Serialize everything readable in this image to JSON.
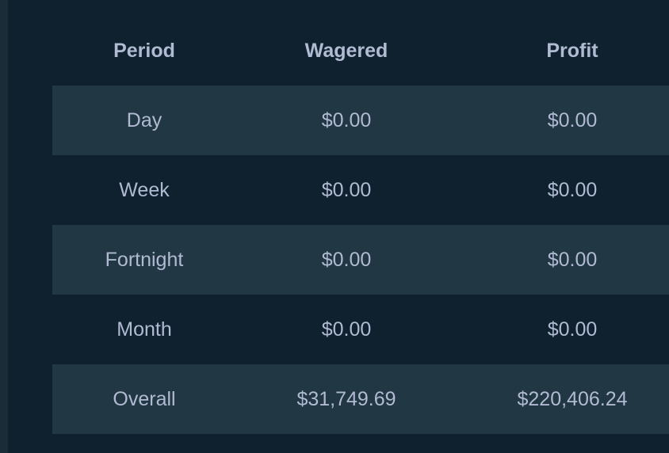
{
  "table": {
    "headers": [
      "Period",
      "Wagered",
      "Profit"
    ],
    "rows": [
      {
        "period": "Day",
        "wagered": "$0.00",
        "profit": "$0.00"
      },
      {
        "period": "Week",
        "wagered": "$0.00",
        "profit": "$0.00"
      },
      {
        "period": "Fortnight",
        "wagered": "$0.00",
        "profit": "$0.00"
      },
      {
        "period": "Month",
        "wagered": "$0.00",
        "profit": "$0.00"
      },
      {
        "period": "Overall",
        "wagered": "$31,749.69",
        "profit": "$220,406.24"
      }
    ]
  },
  "colors": {
    "background": "#0f212e",
    "row_alt": "#213743",
    "text": "#b1bad3"
  }
}
